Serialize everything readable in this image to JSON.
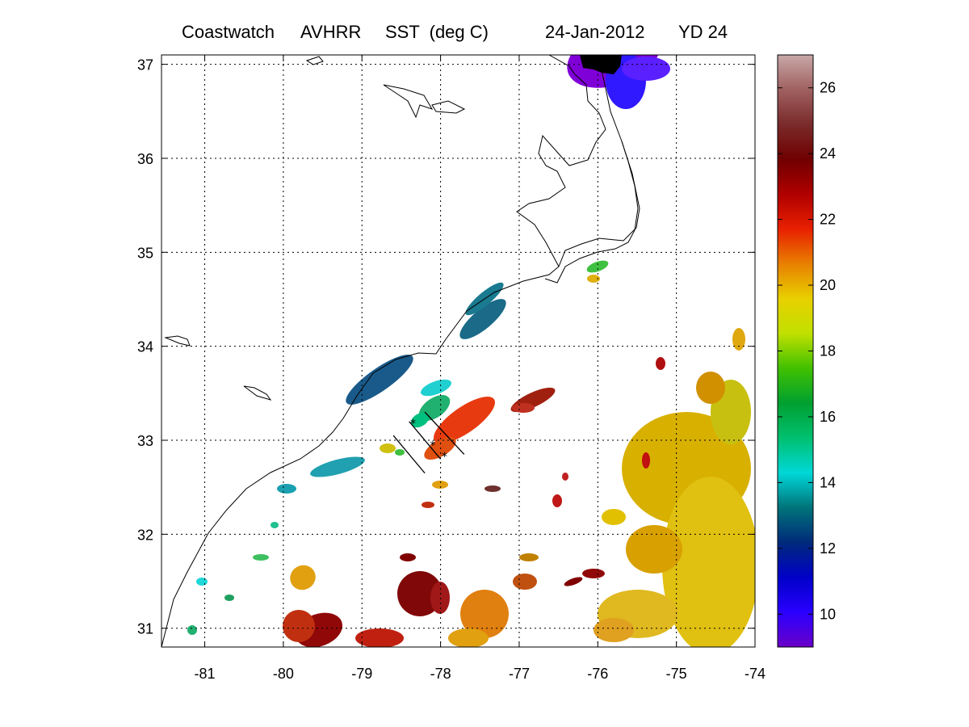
{
  "header": {
    "source": "Coastwatch",
    "sensor": "AVHRR",
    "product": "SST  (deg C)",
    "date": "24-Jan-2012",
    "yearday": "YD 24"
  },
  "map": {
    "lon_range": [
      -81.55,
      -74
    ],
    "lat_range": [
      30.8,
      37.1
    ],
    "lon_ticks": [
      -81,
      -80,
      -79,
      -78,
      -77,
      -76,
      -75,
      -74
    ],
    "lat_ticks": [
      31,
      32,
      33,
      34,
      35,
      36,
      37
    ],
    "grid": "dotted",
    "transect_lines": [
      {
        "from": [
          -78.6,
          33.05
        ],
        "to": [
          -78.2,
          32.65
        ]
      },
      {
        "from": [
          -78.4,
          33.2
        ],
        "to": [
          -78.0,
          32.8
        ]
      },
      {
        "from": [
          -78.2,
          33.3
        ],
        "to": [
          -77.7,
          32.85
        ]
      }
    ],
    "stations": [
      {
        "lon": -78.35,
        "lat": 33.18
      },
      {
        "lon": -78.1,
        "lat": 32.95
      },
      {
        "lon": -77.95,
        "lat": 32.83
      }
    ],
    "land_mask_color": "#000000",
    "coastline_color": "#000000"
  },
  "colorbar": {
    "min": 9,
    "max": 27,
    "ticks": [
      10,
      12,
      14,
      16,
      18,
      20,
      22,
      24,
      26
    ],
    "colors": [
      "#6a00c8",
      "#2a00ff",
      "#0000c8",
      "#002a7a",
      "#00737a",
      "#00d7d7",
      "#00c070",
      "#00a030",
      "#40c000",
      "#c0e000",
      "#e8d000",
      "#e88000",
      "#e82000",
      "#b00000",
      "#700000",
      "#7a2a2a",
      "#a06060",
      "#c8a8a8"
    ]
  }
}
